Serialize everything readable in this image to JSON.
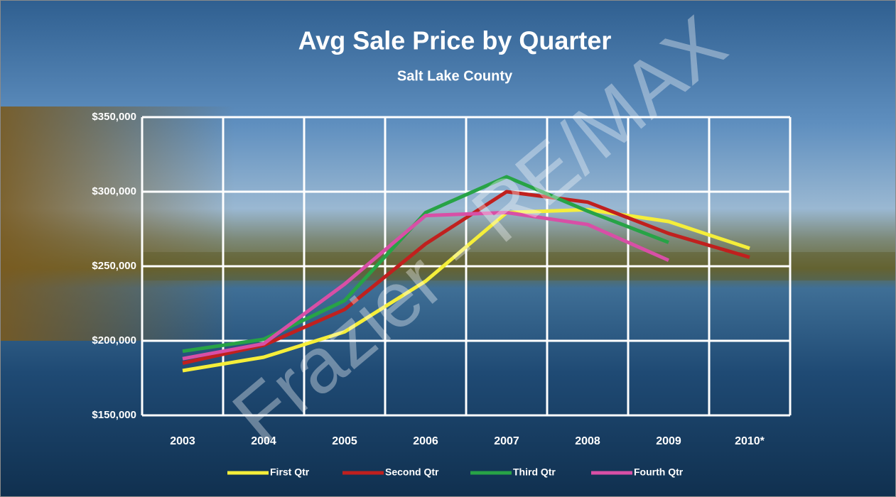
{
  "chart_data": {
    "type": "line",
    "title": "Avg Sale Price by Quarter",
    "subtitle": "Salt Lake County",
    "watermark": "Frazier - RE/MAX",
    "categories": [
      "2003",
      "2004",
      "2005",
      "2006",
      "2007",
      "2008",
      "2009",
      "2010*"
    ],
    "series": [
      {
        "name": "First Qtr",
        "color": "#f5ee3a",
        "values": [
          180000,
          189000,
          206000,
          240000,
          286000,
          288000,
          280000,
          262000
        ]
      },
      {
        "name": "Second Qtr",
        "color": "#c0201e",
        "values": [
          185000,
          197000,
          221000,
          265000,
          300000,
          293000,
          272000,
          256000
        ]
      },
      {
        "name": "Third Qtr",
        "color": "#27a346",
        "values": [
          193000,
          201000,
          227000,
          286000,
          310000,
          287000,
          266000,
          null
        ]
      },
      {
        "name": "Fourth Qtr",
        "color": "#d84fa6",
        "values": [
          188000,
          198000,
          238000,
          284000,
          286000,
          278000,
          254000,
          null
        ]
      }
    ],
    "ylim": [
      150000,
      350000
    ],
    "yticks": [
      {
        "value": 150000,
        "label": "$150,000"
      },
      {
        "value": 200000,
        "label": "$200,000"
      },
      {
        "value": 250000,
        "label": "$250,000"
      },
      {
        "value": 300000,
        "label": "$300,000"
      },
      {
        "value": 350000,
        "label": "$350,000"
      }
    ],
    "grid": true,
    "legend": "bottom"
  }
}
